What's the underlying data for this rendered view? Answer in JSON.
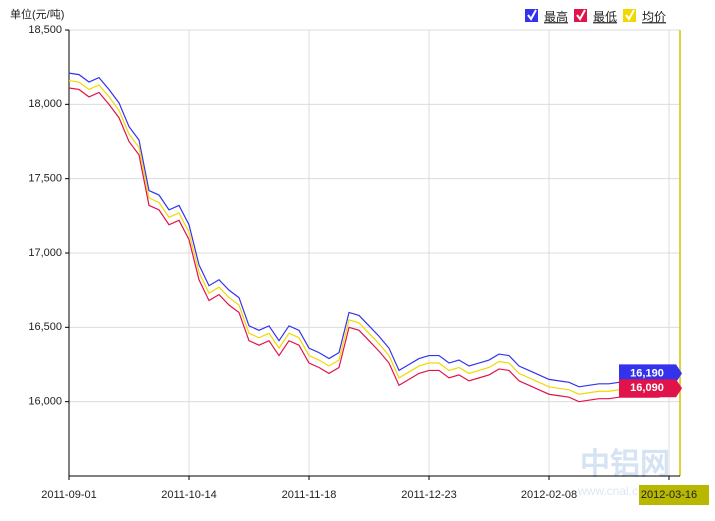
{
  "chart_data": {
    "type": "line",
    "y_label": "单位(元/吨)",
    "watermark": "中铝网",
    "watermark_url": "www.cnal.com",
    "categories": [
      "2011-09-01",
      null,
      null,
      null,
      null,
      null,
      null,
      null,
      null,
      null,
      null,
      null,
      "2011-10-14",
      null,
      null,
      null,
      null,
      null,
      null,
      null,
      null,
      null,
      null,
      null,
      "2011-11-18",
      null,
      null,
      null,
      null,
      null,
      null,
      null,
      null,
      null,
      null,
      null,
      "2011-12-23",
      null,
      null,
      null,
      null,
      null,
      null,
      null,
      null,
      null,
      null,
      null,
      "2012-02-08",
      null,
      null,
      null,
      null,
      null,
      null,
      null,
      null,
      null,
      null,
      null,
      "2012-03-16"
    ],
    "series": [
      {
        "name": "最高",
        "color": "#3333ee",
        "values": [
          18210,
          18200,
          18150,
          18180,
          18100,
          18010,
          17850,
          17760,
          17420,
          17390,
          17290,
          17320,
          17190,
          16920,
          16780,
          16820,
          16750,
          16700,
          16510,
          16480,
          16510,
          16410,
          16510,
          16480,
          16360,
          16330,
          16290,
          16330,
          16600,
          16580,
          16510,
          16440,
          16360,
          16210,
          16250,
          16290,
          16310,
          16310,
          16260,
          16280,
          16240,
          16260,
          16280,
          16320,
          16310,
          16240,
          16210,
          16180,
          16150,
          16140,
          16130,
          16100,
          16110,
          16120,
          16120,
          16130,
          16130,
          16130,
          16130,
          16130,
          16190
        ],
        "value_labels": [
          null,
          null,
          null,
          null,
          null,
          null,
          null,
          null,
          null,
          null,
          null,
          null,
          null,
          null,
          null,
          null,
          null,
          null,
          null,
          null,
          null,
          null,
          null,
          null,
          null,
          null,
          null,
          null,
          null,
          null,
          null,
          null,
          null,
          null,
          null,
          null,
          null,
          null,
          null,
          null,
          null,
          null,
          null,
          null,
          null,
          null,
          null,
          null,
          null,
          null,
          null,
          null,
          null,
          null,
          null,
          null,
          null,
          null,
          null,
          null,
          "16,190"
        ]
      },
      {
        "name": "最低",
        "color": "#e0134a",
        "values": [
          18110,
          18100,
          18050,
          18080,
          18000,
          17910,
          17750,
          17660,
          17320,
          17290,
          17190,
          17220,
          17090,
          16820,
          16680,
          16720,
          16650,
          16600,
          16410,
          16380,
          16410,
          16310,
          16410,
          16380,
          16260,
          16230,
          16190,
          16230,
          16500,
          16480,
          16410,
          16340,
          16260,
          16110,
          16150,
          16190,
          16210,
          16210,
          16160,
          16180,
          16140,
          16160,
          16180,
          16220,
          16210,
          16140,
          16110,
          16080,
          16050,
          16040,
          16030,
          16000,
          16010,
          16020,
          16020,
          16030,
          16030,
          16030,
          16030,
          16030,
          16090
        ],
        "value_labels": [
          null,
          null,
          null,
          null,
          null,
          null,
          null,
          null,
          null,
          null,
          null,
          null,
          null,
          null,
          null,
          null,
          null,
          null,
          null,
          null,
          null,
          null,
          null,
          null,
          null,
          null,
          null,
          null,
          null,
          null,
          null,
          null,
          null,
          null,
          null,
          null,
          null,
          null,
          null,
          null,
          null,
          null,
          null,
          null,
          null,
          null,
          null,
          null,
          null,
          null,
          null,
          null,
          null,
          null,
          null,
          null,
          null,
          null,
          null,
          null,
          "16,090"
        ]
      },
      {
        "name": "均价",
        "color": "#f2d800",
        "values": [
          18160,
          18150,
          18100,
          18130,
          18050,
          17960,
          17800,
          17710,
          17370,
          17340,
          17240,
          17270,
          17140,
          16870,
          16730,
          16770,
          16700,
          16650,
          16460,
          16430,
          16460,
          16360,
          16460,
          16430,
          16310,
          16280,
          16240,
          16280,
          16550,
          16530,
          16460,
          16390,
          16310,
          16160,
          16200,
          16240,
          16260,
          16260,
          16210,
          16230,
          16190,
          16210,
          16230,
          16270,
          16260,
          16190,
          16160,
          16130,
          16100,
          16090,
          16080,
          16050,
          16060,
          16070,
          16070,
          16080,
          16080,
          16080,
          16080,
          16080,
          16140
        ]
      }
    ],
    "ylim": [
      15500,
      18500
    ],
    "yticks": [
      {
        "value": 16000,
        "label": "16,000"
      },
      {
        "value": 16500,
        "label": "16,500"
      },
      {
        "value": 17000,
        "label": "17,000"
      },
      {
        "value": 17500,
        "label": "17,500"
      },
      {
        "value": 18000,
        "label": "18,000"
      },
      {
        "value": 18500,
        "label": "18,500"
      }
    ],
    "grid": true,
    "legend": "top-right"
  }
}
